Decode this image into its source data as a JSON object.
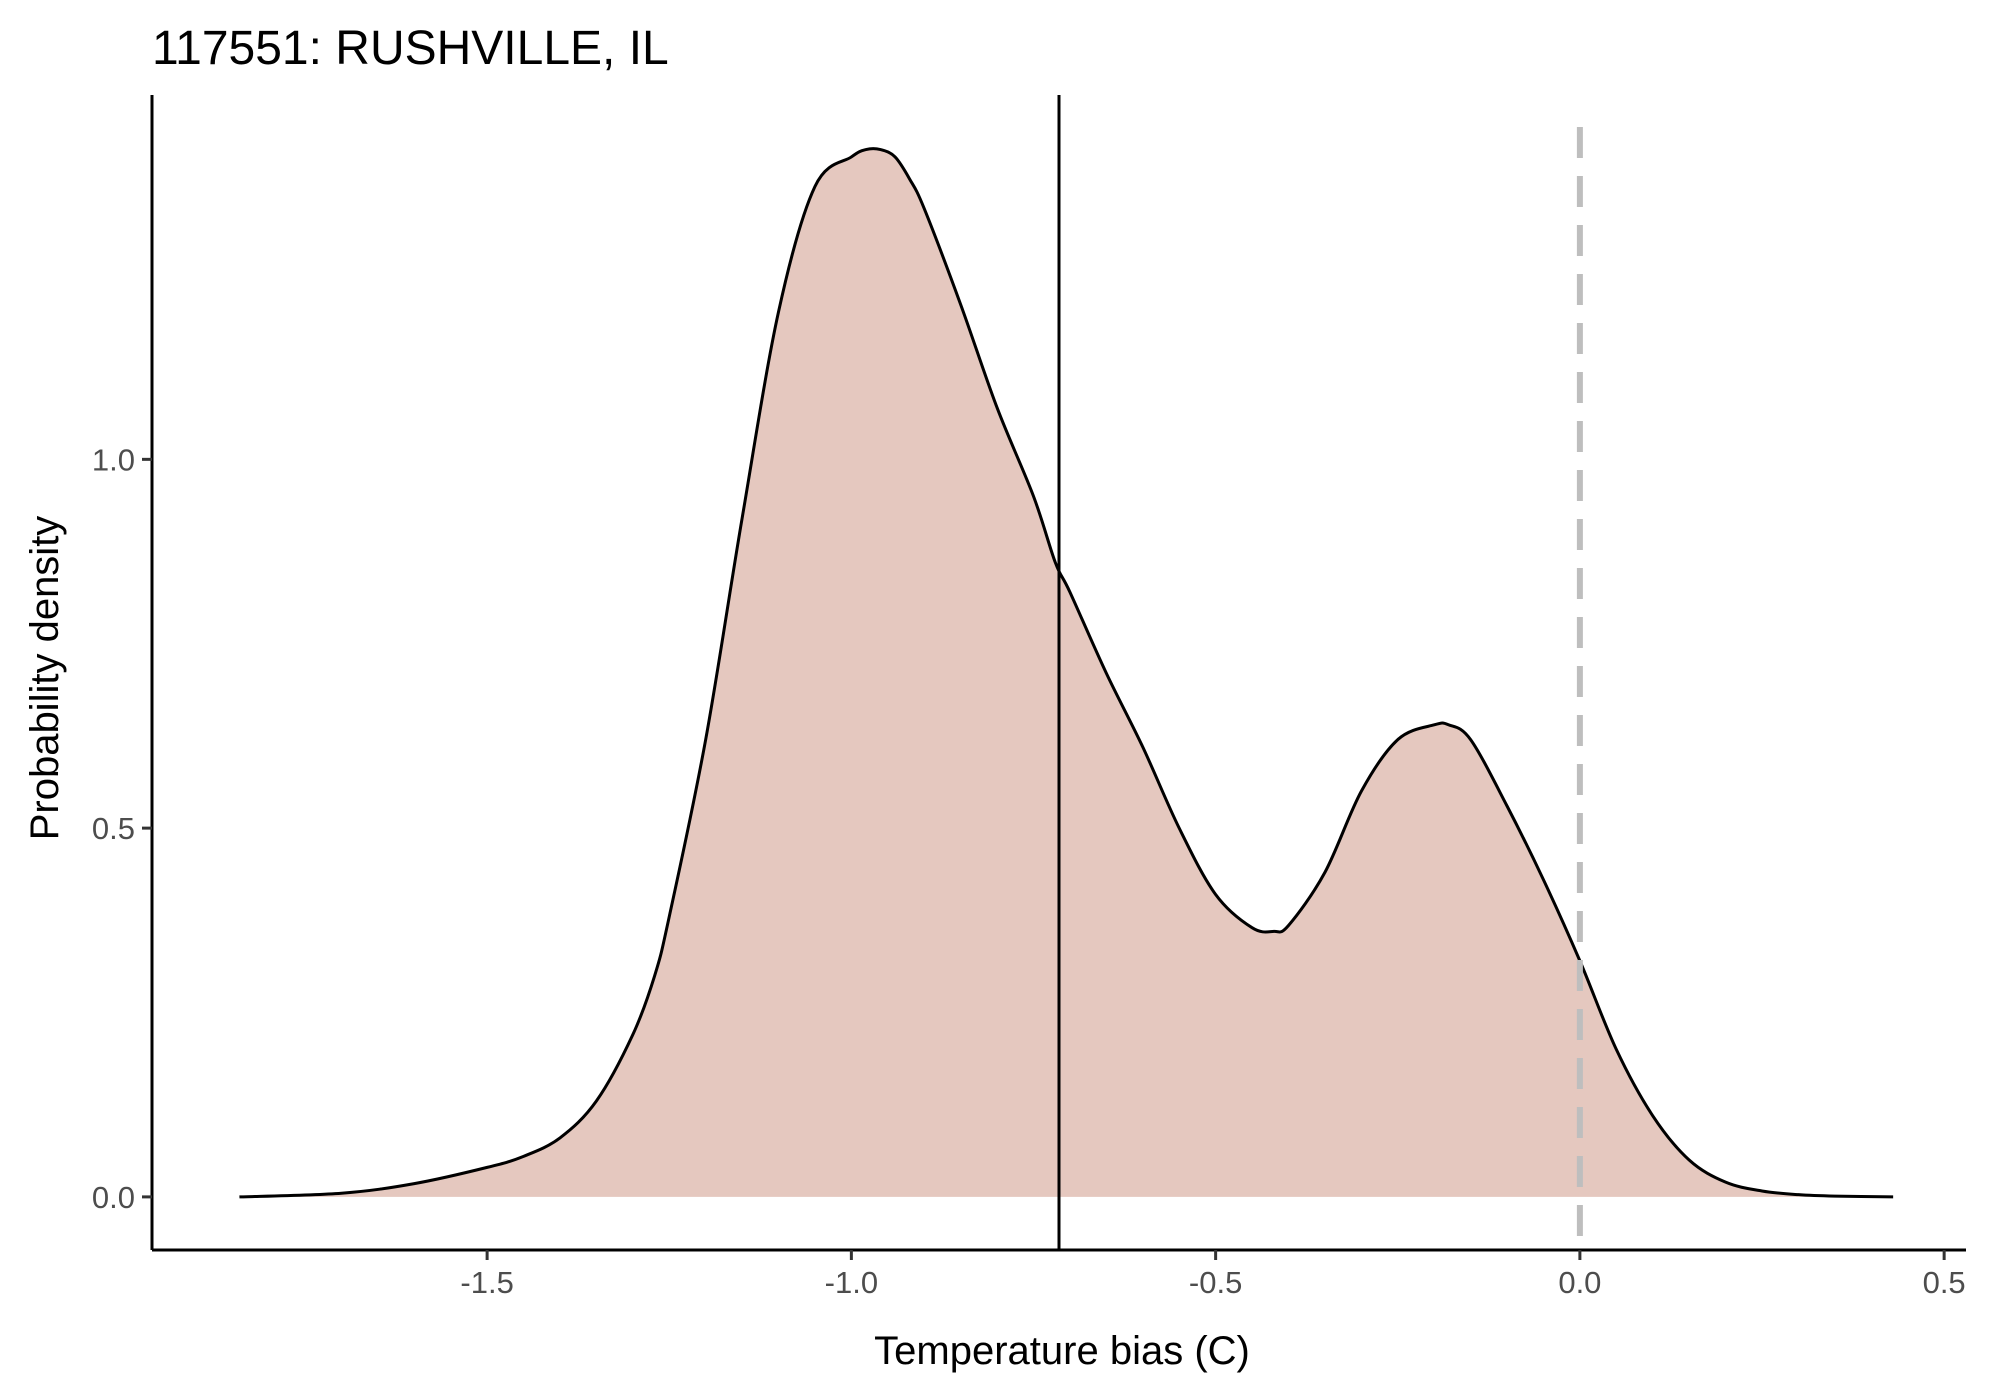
{
  "chart_data": {
    "type": "area",
    "title": "117551: RUSHVILLE, IL",
    "xlabel": "Temperature bias (C)",
    "ylabel": "Probability density",
    "xlim": [
      -1.96,
      0.53
    ],
    "ylim": [
      -0.072,
      1.494
    ],
    "x_ticks": [
      -1.5,
      -1.0,
      -0.5,
      0.0,
      0.5
    ],
    "x_tick_labels": [
      "-1.5",
      "-1.0",
      "-0.5",
      "0.0",
      "0.5"
    ],
    "y_ticks": [
      0.0,
      0.5,
      1.0
    ],
    "y_tick_labels": [
      "0.0",
      "0.5",
      "1.0"
    ],
    "grid": false,
    "fill_color": "#e5c8bf",
    "line_color": "#000000",
    "series": [
      {
        "x": [
          -1.84,
          -1.7,
          -1.6,
          -1.5,
          -1.45,
          -1.4,
          -1.35,
          -1.3,
          -1.27,
          -1.25,
          -1.2,
          -1.15,
          -1.1,
          -1.05,
          -1.0,
          -0.98,
          -0.96,
          -0.94,
          -0.92,
          -0.9,
          -0.85,
          -0.8,
          -0.75,
          -0.72,
          -0.7,
          -0.65,
          -0.6,
          -0.55,
          -0.5,
          -0.45,
          -0.42,
          -0.4,
          -0.35,
          -0.3,
          -0.25,
          -0.2,
          -0.18,
          -0.15,
          -0.1,
          -0.05,
          0.0,
          0.05,
          0.1,
          0.15,
          0.2,
          0.25,
          0.3,
          0.35,
          0.43
        ],
        "y": [
          0.0,
          0.005,
          0.018,
          0.04,
          0.055,
          0.08,
          0.13,
          0.22,
          0.3,
          0.38,
          0.62,
          0.92,
          1.2,
          1.37,
          1.41,
          1.42,
          1.42,
          1.41,
          1.38,
          1.34,
          1.21,
          1.07,
          0.95,
          0.86,
          0.82,
          0.71,
          0.61,
          0.5,
          0.41,
          0.365,
          0.36,
          0.368,
          0.44,
          0.55,
          0.62,
          0.64,
          0.64,
          0.62,
          0.53,
          0.43,
          0.32,
          0.2,
          0.11,
          0.05,
          0.02,
          0.008,
          0.003,
          0.001,
          0.0
        ]
      }
    ],
    "reference_lines": [
      {
        "x": -0.715,
        "style": "solid",
        "color": "#000000"
      },
      {
        "x": 0.0,
        "style": "dashed",
        "color": "#bebebe"
      }
    ]
  }
}
